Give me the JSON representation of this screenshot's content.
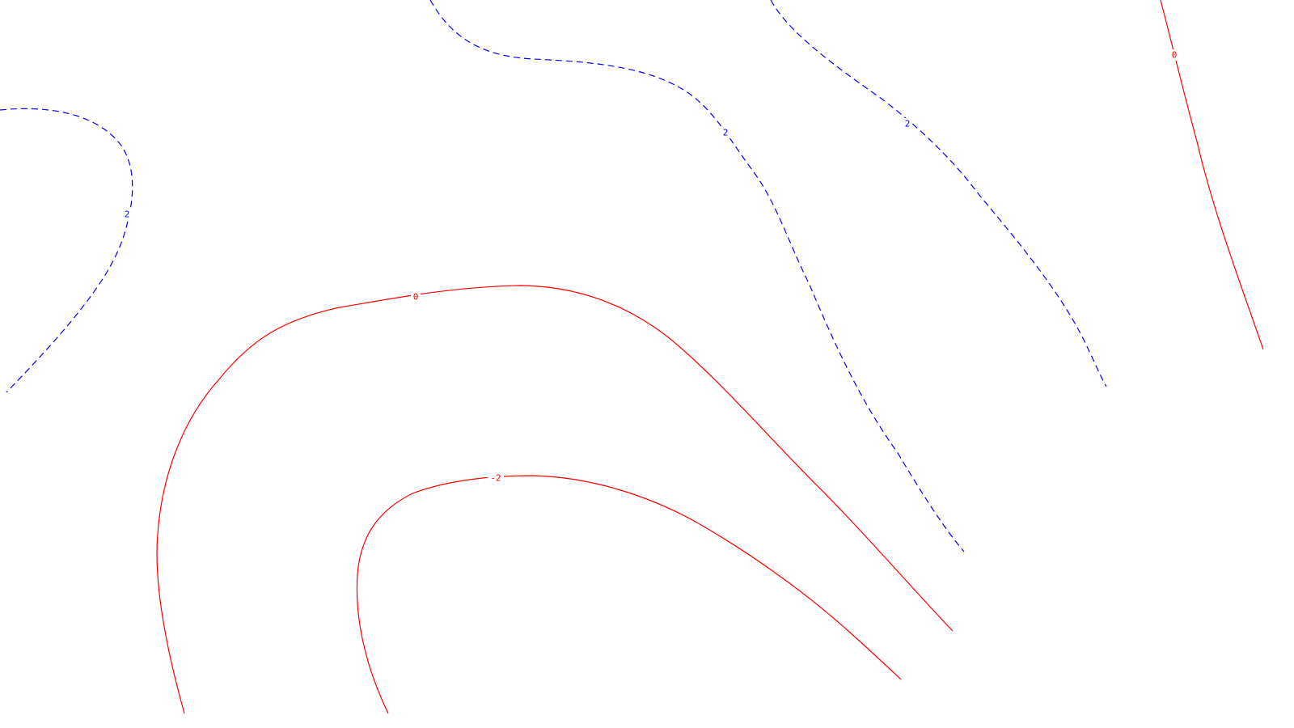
{
  "colors": {
    "background": "#ffffff",
    "positive_contour": "#0000ff",
    "zero_contour": "#ff0000",
    "negative_contour": "#ff0000"
  },
  "line_styles": {
    "positive": "dashed",
    "zero": "solid",
    "negative": "solid"
  },
  "contour_labels": {
    "pos_left": "2",
    "pos_top_center": "2",
    "pos_top_right": "2",
    "zero_right": "0",
    "zero_center": "0",
    "neg_center": "-2"
  }
}
